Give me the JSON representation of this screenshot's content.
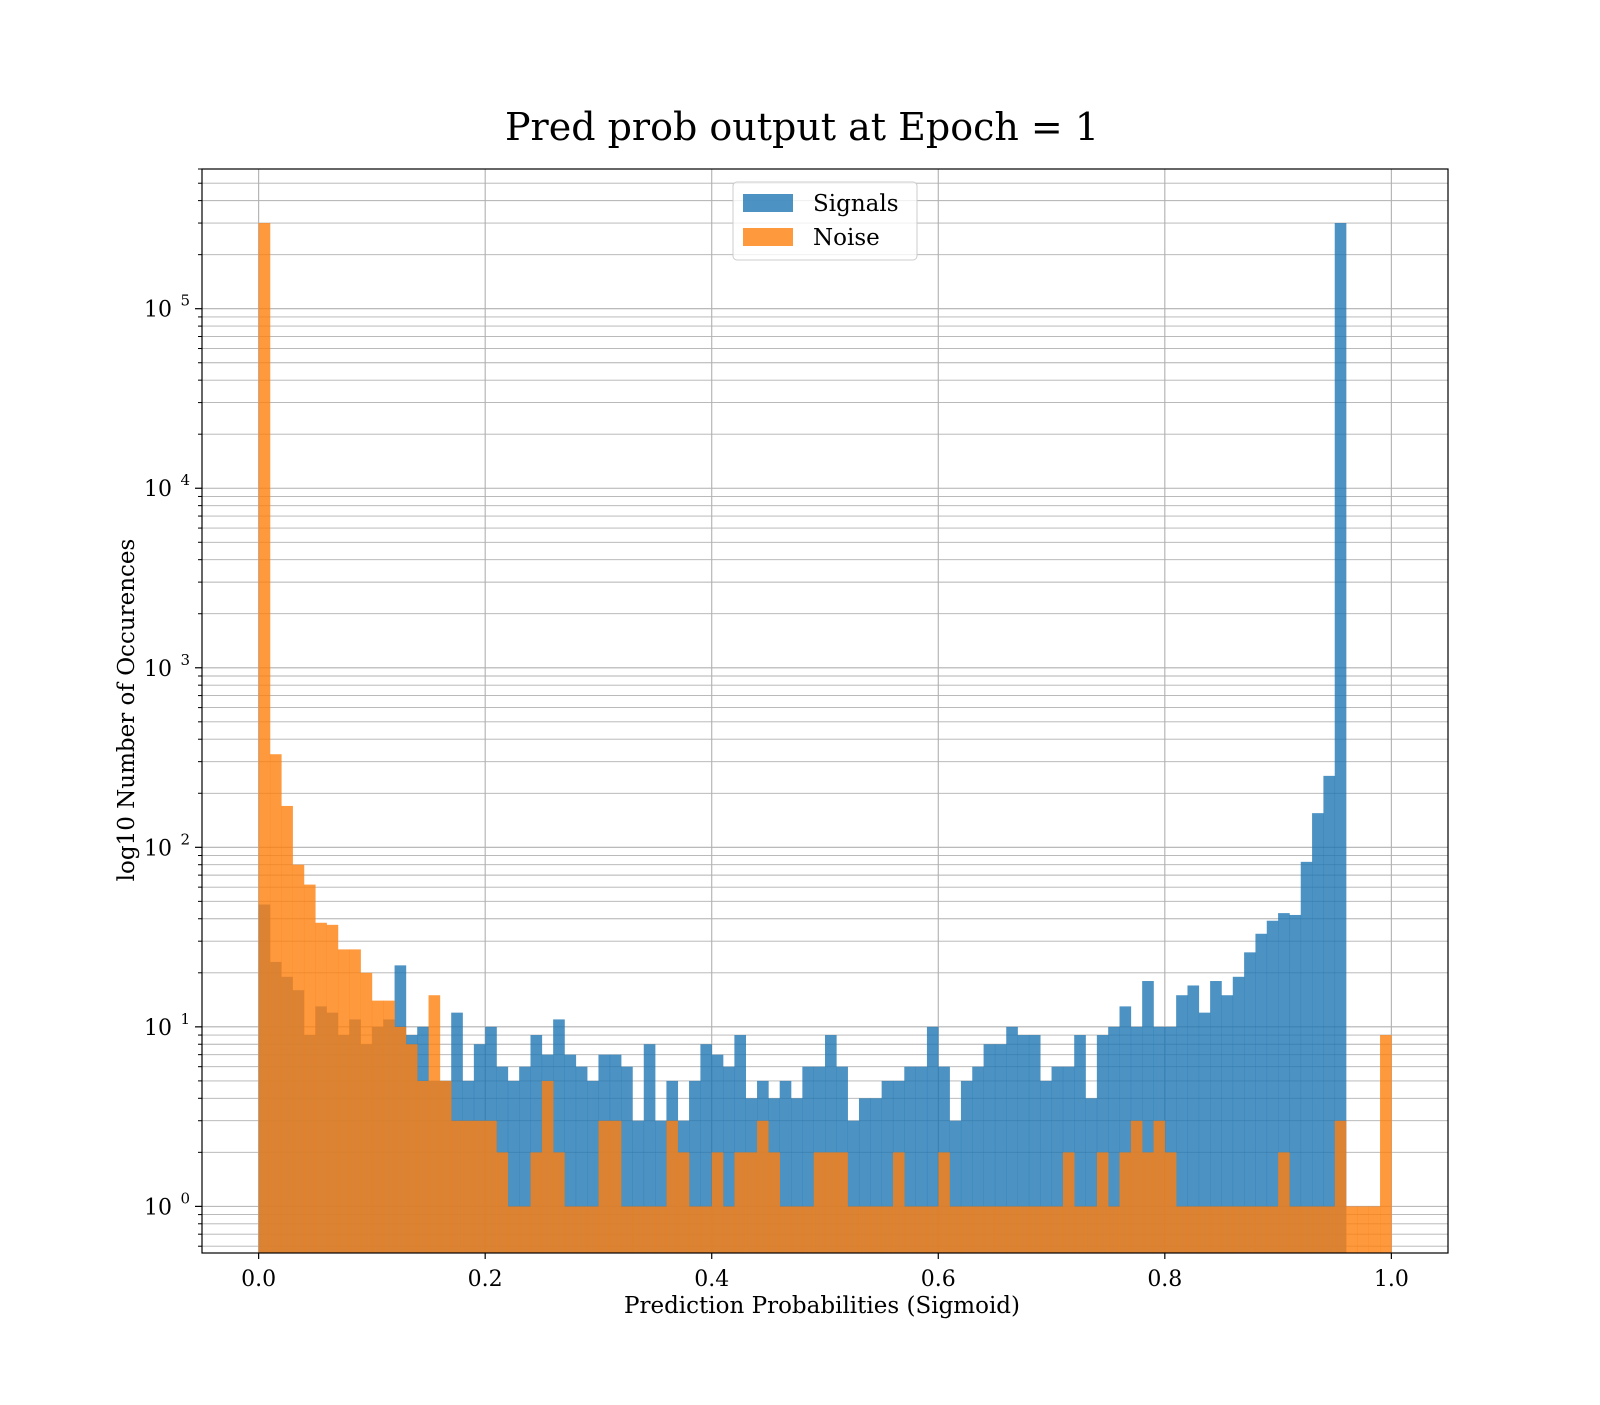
{
  "chart_data": {
    "type": "bar",
    "title": "Pred prob output at Epoch = 1",
    "xlabel": "Prediction Probabilities (Sigmoid)",
    "ylabel": "log10 Number of Occurences",
    "xlim": [
      -0.05,
      1.05
    ],
    "ylim": [
      0.55,
      600000
    ],
    "yscale": "log",
    "grid": true,
    "legend_position": "top-center",
    "bins": 100,
    "x_ticks": [
      0.0,
      0.2,
      0.4,
      0.6,
      0.8,
      1.0
    ],
    "x_tick_labels": [
      "0.0",
      "0.2",
      "0.4",
      "0.6",
      "0.8",
      "1.0"
    ],
    "y_ticks": [
      1,
      10,
      100,
      1000,
      10000,
      100000
    ],
    "y_tick_labels": [
      {
        "base": "10",
        "exp": "0"
      },
      {
        "base": "10",
        "exp": "1"
      },
      {
        "base": "10",
        "exp": "2"
      },
      {
        "base": "10",
        "exp": "3"
      },
      {
        "base": "10",
        "exp": "4"
      },
      {
        "base": "10",
        "exp": "5"
      }
    ],
    "series": [
      {
        "name": "Signals",
        "color": "#1f77b4",
        "values": [
          48,
          23,
          19,
          16,
          9,
          13,
          12,
          9,
          11,
          8,
          10,
          11,
          22,
          9,
          10,
          5,
          5,
          12,
          5,
          8,
          10,
          6,
          5,
          6,
          9,
          7,
          11,
          7,
          6,
          5,
          7,
          7,
          6,
          3,
          8,
          3,
          5,
          3,
          5,
          8,
          7,
          6,
          9,
          4,
          5,
          4,
          5,
          4,
          6,
          6,
          9,
          6,
          3,
          4,
          4,
          5,
          5,
          6,
          6,
          10,
          6,
          3,
          5,
          6,
          8,
          8,
          10,
          9,
          9,
          5,
          6,
          6,
          9,
          4,
          9,
          10,
          13,
          10,
          18,
          10,
          10,
          15,
          17,
          12,
          18,
          15,
          19,
          26,
          33,
          39,
          43,
          42,
          83,
          155,
          250,
          300000,
          0,
          0,
          0,
          0
        ]
      },
      {
        "name": "Noise",
        "color": "#ff7f0e",
        "values": [
          300000,
          330,
          170,
          80,
          62,
          38,
          37,
          27,
          27,
          20,
          14,
          14,
          10,
          8,
          5,
          15,
          5,
          3,
          3,
          3,
          3,
          2,
          1,
          1,
          2,
          5,
          2,
          1,
          1,
          1,
          3,
          3,
          1,
          1,
          1,
          1,
          3,
          2,
          1,
          1,
          2,
          1,
          2,
          2,
          3,
          2,
          1,
          1,
          1,
          2,
          2,
          2,
          1,
          1,
          1,
          1,
          2,
          1,
          1,
          1,
          2,
          1,
          1,
          1,
          1,
          1,
          1,
          1,
          1,
          1,
          1,
          2,
          1,
          1,
          2,
          1,
          2,
          3,
          2,
          3,
          2,
          1,
          1,
          1,
          1,
          1,
          1,
          1,
          1,
          1,
          2,
          1,
          1,
          1,
          1,
          3,
          1,
          1,
          1,
          9
        ]
      }
    ]
  }
}
